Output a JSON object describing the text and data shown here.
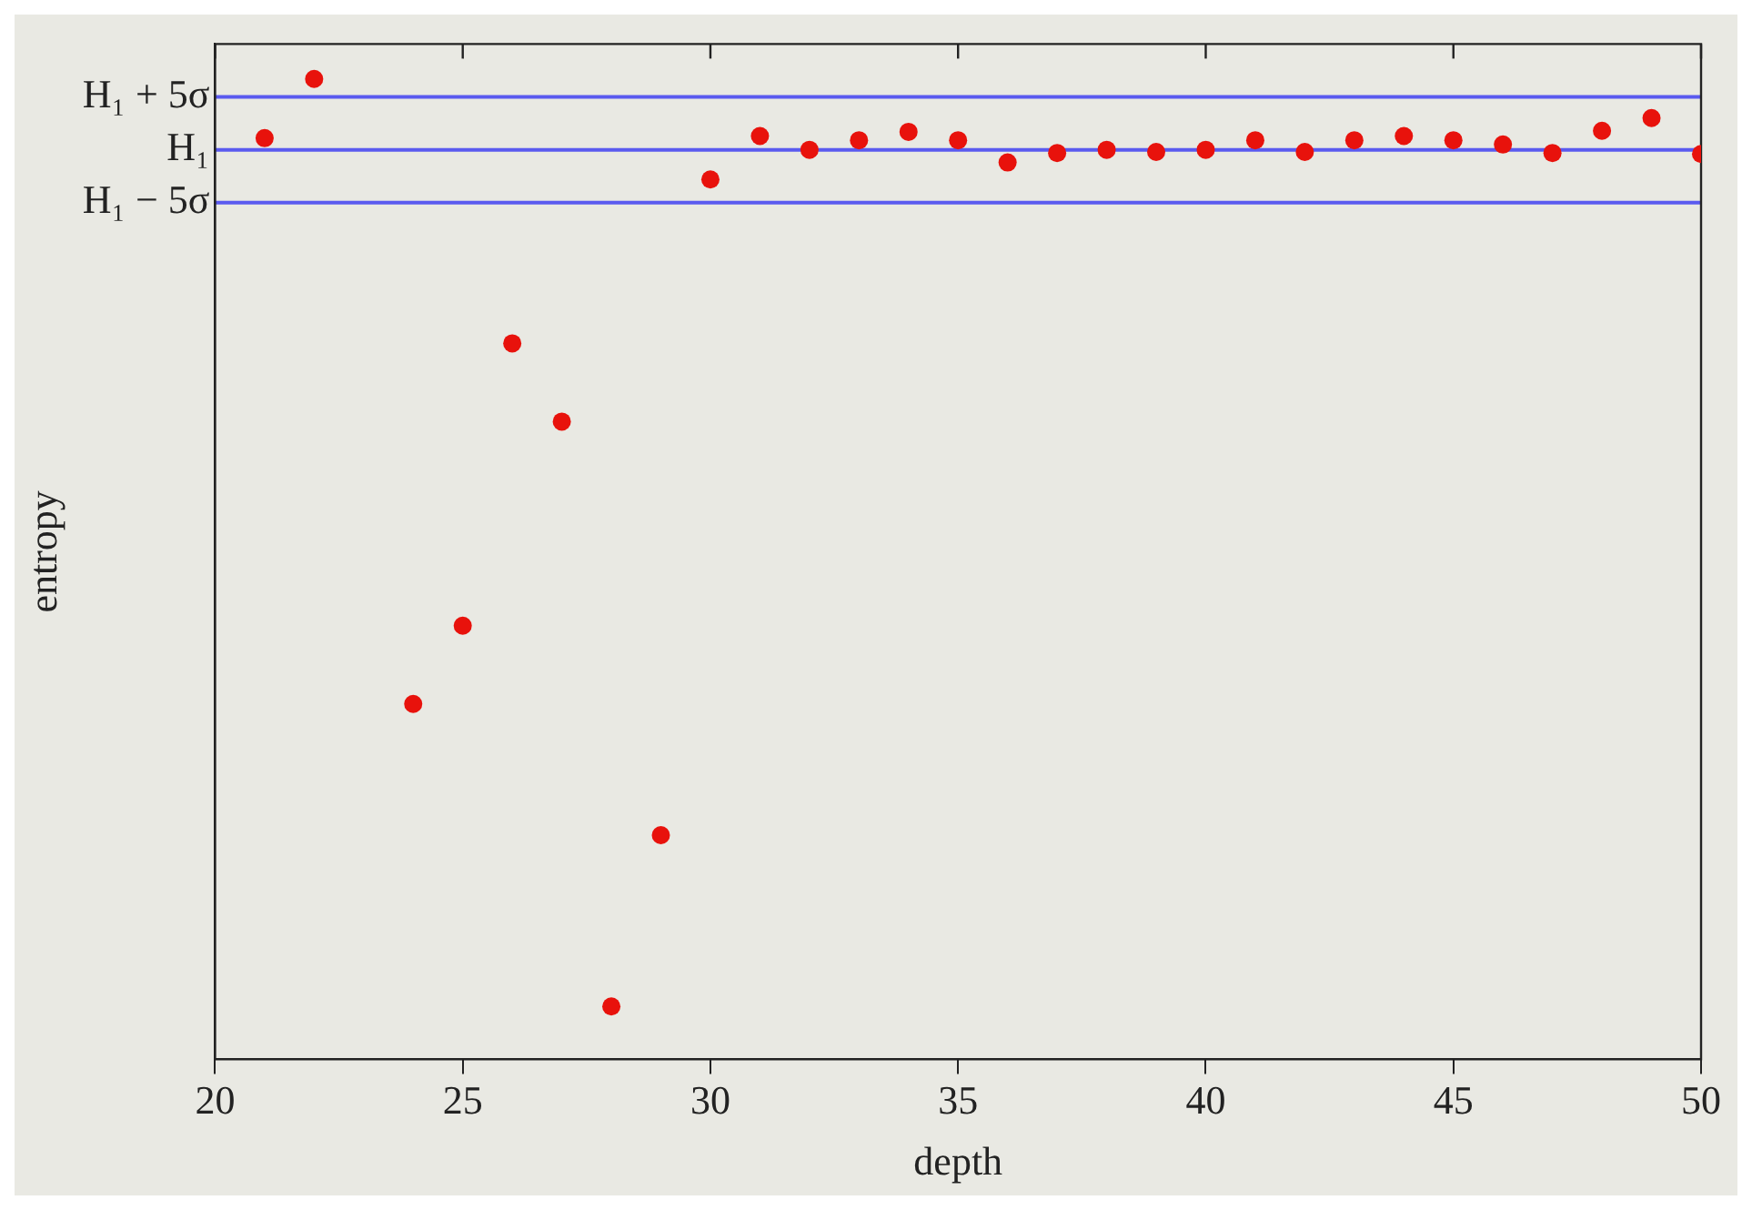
{
  "chart_data": {
    "type": "scatter",
    "xlabel": "depth",
    "ylabel": "entropy",
    "x": [
      21,
      22,
      24,
      25,
      26,
      27,
      28,
      29,
      30,
      31,
      32,
      33,
      34,
      35,
      36,
      37,
      38,
      39,
      40,
      41,
      42,
      43,
      44,
      45,
      46,
      47,
      48,
      49,
      50
    ],
    "series": [
      {
        "color": "#e8120c",
        "values": [
          1.1,
          6.7,
          -52.4,
          -45.0,
          -18.3,
          -25.7,
          -81.0,
          -64.8,
          -2.8,
          1.3,
          0,
          0.9,
          1.7,
          0.9,
          -1.2,
          -0.3,
          0,
          -0.2,
          0,
          0.9,
          -0.2,
          0.9,
          1.3,
          0.9,
          0.5,
          -0.3,
          1.8,
          3.0,
          -0.4
        ]
      }
    ],
    "xlim": [
      20,
      50
    ],
    "xticks": [
      20,
      25,
      30,
      35,
      40,
      45,
      50
    ],
    "ylim": [
      -86,
      10
    ],
    "yticks": [
      {
        "value": 5,
        "label": "H₁ + 5σ"
      },
      {
        "value": 0,
        "label": "H₁"
      },
      {
        "value": -5,
        "label": "H₁ − 5σ"
      }
    ],
    "ref_lines": [
      {
        "axis": "y",
        "value": 5,
        "color": "#5a5aef"
      },
      {
        "axis": "y",
        "value": 0,
        "color": "#5a5aef"
      },
      {
        "axis": "y",
        "value": -5,
        "color": "#5a5aef"
      }
    ],
    "marker": "circle",
    "grid": false,
    "legend": false
  }
}
